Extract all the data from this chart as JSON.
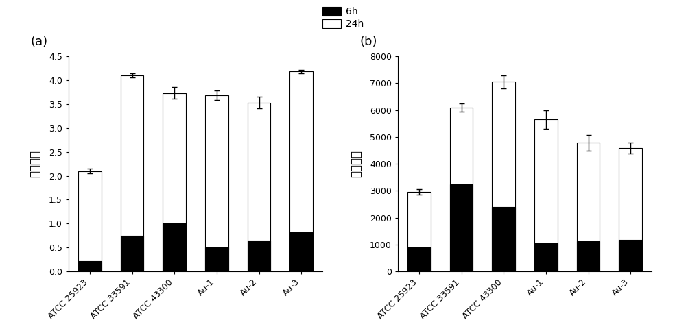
{
  "categories": [
    "ATCC 25923",
    "ATCC 33591",
    "ATCC 43300",
    "Au-1",
    "Au-2",
    "Au-3"
  ],
  "panel_a": {
    "values_6h": [
      0.22,
      0.75,
      1.0,
      0.5,
      0.65,
      0.82
    ],
    "values_24h_total": [
      2.1,
      4.1,
      3.73,
      3.68,
      3.53,
      4.18
    ],
    "err_24h": [
      0.05,
      0.04,
      0.12,
      0.1,
      0.12,
      0.04
    ],
    "ylabel": "吸光度值",
    "ylim": [
      0,
      4.5
    ],
    "yticks": [
      0.0,
      0.5,
      1.0,
      1.5,
      2.0,
      2.5,
      3.0,
      3.5,
      4.0,
      4.5
    ],
    "label": "(a)"
  },
  "panel_b": {
    "values_6h": [
      900,
      3250,
      2400,
      1050,
      1120,
      1180
    ],
    "values_24h_total": [
      2950,
      6100,
      7050,
      5650,
      4780,
      4580
    ],
    "err_24h": [
      100,
      150,
      250,
      350,
      300,
      200
    ],
    "ylabel": "荺光强度",
    "ylim": [
      0,
      8000
    ],
    "yticks": [
      0,
      1000,
      2000,
      3000,
      4000,
      5000,
      6000,
      7000,
      8000
    ],
    "label": "(b)"
  },
  "legend_6h": "6h",
  "legend_24h": "24h",
  "bar_color_6h": "#000000",
  "bar_color_24h": "#ffffff",
  "bar_edgecolor": "#000000",
  "bar_width": 0.55,
  "figure_bg": "#ffffff"
}
